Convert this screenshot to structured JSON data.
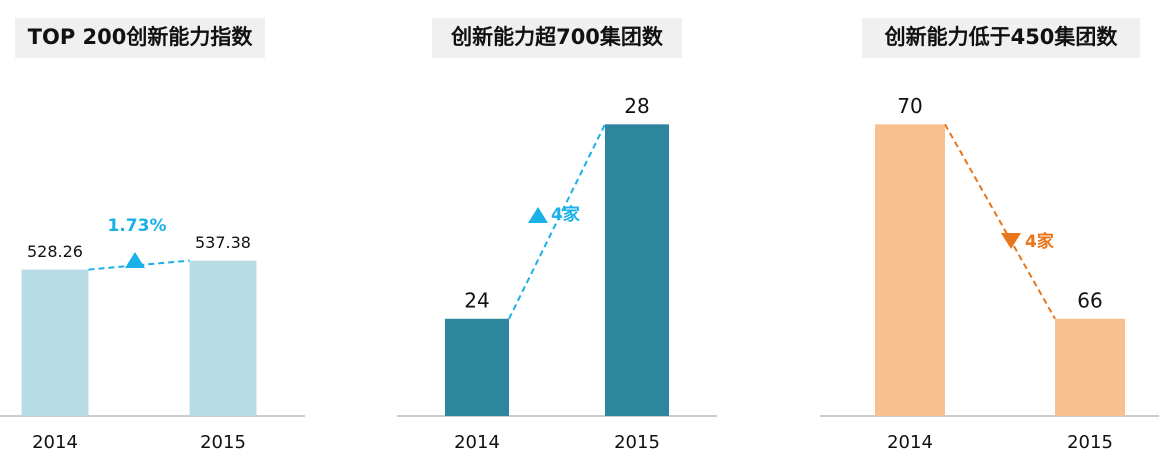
{
  "chart_data": [
    {
      "type": "bar",
      "title": "TOP 200创新能力指数",
      "categories": [
        "2014",
        "2015"
      ],
      "values": [
        528.26,
        537.38
      ],
      "color": "#b8dde6",
      "ylim": [
        380,
        700
      ],
      "annotation": "1.73%",
      "trend": "up",
      "annotation_color": "#1ab0e8"
    },
    {
      "type": "bar",
      "title": "创新能力超700集团数",
      "categories": [
        "2014",
        "2015"
      ],
      "values": [
        24,
        28
      ],
      "color": "#2e869e",
      "ylim": [
        22,
        28.5
      ],
      "annotation": "4家",
      "trend": "up",
      "annotation_color": "#1ab0e8"
    },
    {
      "type": "bar",
      "title": "创新能力低于450集团数",
      "categories": [
        "2014",
        "2015"
      ],
      "values": [
        70,
        66
      ],
      "color": "#f8c08e",
      "ylim": [
        64,
        70.5
      ],
      "annotation": "4家",
      "trend": "down",
      "annotation_color": "#e8751a"
    }
  ]
}
